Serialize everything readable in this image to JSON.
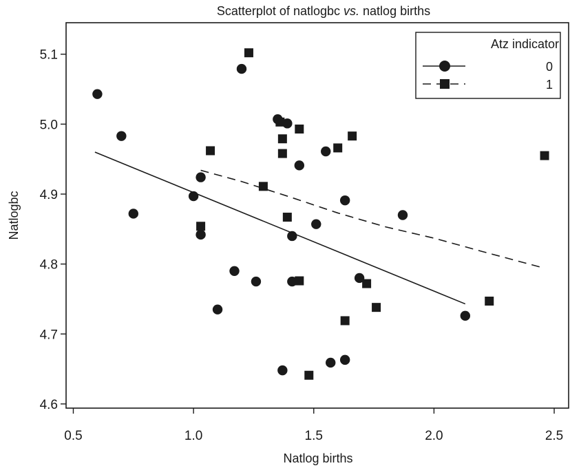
{
  "chart_data": {
    "type": "scatter",
    "title": {
      "prefix": "Scatterplot of natlogbc ",
      "italic": "vs.",
      "suffix": " natlog births"
    },
    "xlabel": "Natlog births",
    "ylabel": "Natlogbc",
    "xlim": [
      0.47,
      2.56
    ],
    "ylim": [
      4.594,
      5.145
    ],
    "xticks": [
      0.5,
      1.0,
      1.5,
      2.0,
      2.5
    ],
    "yticks": [
      4.6,
      4.7,
      4.8,
      4.9,
      5.0,
      5.1
    ],
    "xtick_labels": [
      "0.5",
      "1.0",
      "1.5",
      "2.0",
      "2.5"
    ],
    "ytick_labels": [
      "4.6",
      "4.7",
      "4.8",
      "4.9",
      "5.0",
      "5.1"
    ],
    "grid": false,
    "legend": {
      "title": "Atz indicator",
      "placement": "top-right",
      "entries": [
        "0",
        "1"
      ]
    },
    "series": [
      {
        "name": "0",
        "marker": "circle",
        "points": [
          [
            0.6,
            5.043
          ],
          [
            0.7,
            4.983
          ],
          [
            0.75,
            4.872
          ],
          [
            1.0,
            4.897
          ],
          [
            1.03,
            4.924
          ],
          [
            1.03,
            4.842
          ],
          [
            1.1,
            4.735
          ],
          [
            1.17,
            4.79
          ],
          [
            1.2,
            5.079
          ],
          [
            1.26,
            4.775
          ],
          [
            1.35,
            5.007
          ],
          [
            1.37,
            4.648
          ],
          [
            1.39,
            5.001
          ],
          [
            1.41,
            4.84
          ],
          [
            1.41,
            4.775
          ],
          [
            1.44,
            4.941
          ],
          [
            1.51,
            4.857
          ],
          [
            1.55,
            4.961
          ],
          [
            1.57,
            4.659
          ],
          [
            1.63,
            4.891
          ],
          [
            1.63,
            4.663
          ],
          [
            1.69,
            4.78
          ],
          [
            1.87,
            4.87
          ],
          [
            2.13,
            4.726
          ]
        ],
        "fit_line": [
          [
            0.59,
            4.96
          ],
          [
            2.13,
            4.743
          ]
        ]
      },
      {
        "name": "1",
        "marker": "square",
        "points": [
          [
            1.03,
            4.854
          ],
          [
            1.07,
            4.962
          ],
          [
            1.23,
            5.102
          ],
          [
            1.29,
            4.911
          ],
          [
            1.36,
            5.003
          ],
          [
            1.37,
            4.979
          ],
          [
            1.37,
            4.958
          ],
          [
            1.39,
            4.867
          ],
          [
            1.44,
            4.776
          ],
          [
            1.44,
            4.993
          ],
          [
            1.48,
            4.641
          ],
          [
            1.6,
            4.966
          ],
          [
            1.63,
            4.719
          ],
          [
            1.66,
            4.983
          ],
          [
            1.72,
            4.772
          ],
          [
            1.76,
            4.738
          ],
          [
            2.23,
            4.747
          ],
          [
            2.46,
            4.955
          ]
        ],
        "fit_line": [
          [
            1.03,
            4.934
          ],
          [
            1.2,
            4.918
          ],
          [
            1.4,
            4.896
          ],
          [
            1.6,
            4.873
          ],
          [
            1.8,
            4.853
          ],
          [
            2.0,
            4.837
          ],
          [
            2.2,
            4.818
          ],
          [
            2.46,
            4.794
          ]
        ]
      }
    ]
  }
}
